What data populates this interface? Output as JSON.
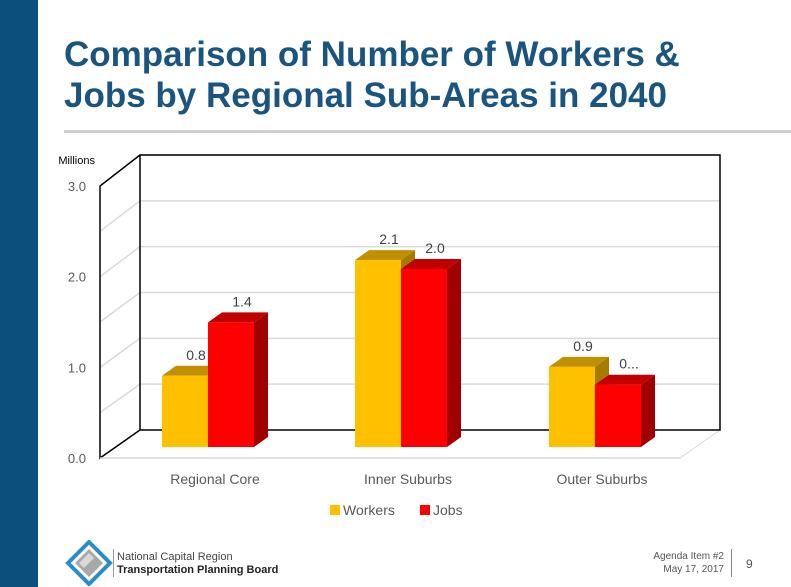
{
  "slide": {
    "title": "Comparison of Number of Workers & Jobs by Regional Sub-Areas in 2040",
    "footer": {
      "org_line1": "National Capital Region",
      "org_line2": "Transportation Planning Board",
      "agenda": "Agenda Item #2",
      "date": "May 17, 2017",
      "page": "9"
    }
  },
  "colors": {
    "workers": "#ffc000",
    "jobs": "#ff0000",
    "title": "#1a5580",
    "stripe": "#0d4f7c"
  },
  "chart_data": {
    "type": "bar",
    "style": "3d-clustered",
    "ylabel": "Millions",
    "ylim": [
      0,
      3
    ],
    "yticks": [
      "0.0",
      "1.0",
      "2.0",
      "3.0"
    ],
    "categories": [
      "Regional Core",
      "Inner Suburbs",
      "Outer Suburbs"
    ],
    "series": [
      {
        "name": "Workers",
        "values": [
          0.8,
          2.1,
          0.9
        ],
        "labels": [
          "0.8",
          "2.1",
          "0.9"
        ]
      },
      {
        "name": "Jobs",
        "values": [
          1.4,
          2.0,
          0.7
        ],
        "labels": [
          "1.4",
          "2.0",
          "0..."
        ]
      }
    ],
    "legend": "bottom",
    "grid": true
  }
}
